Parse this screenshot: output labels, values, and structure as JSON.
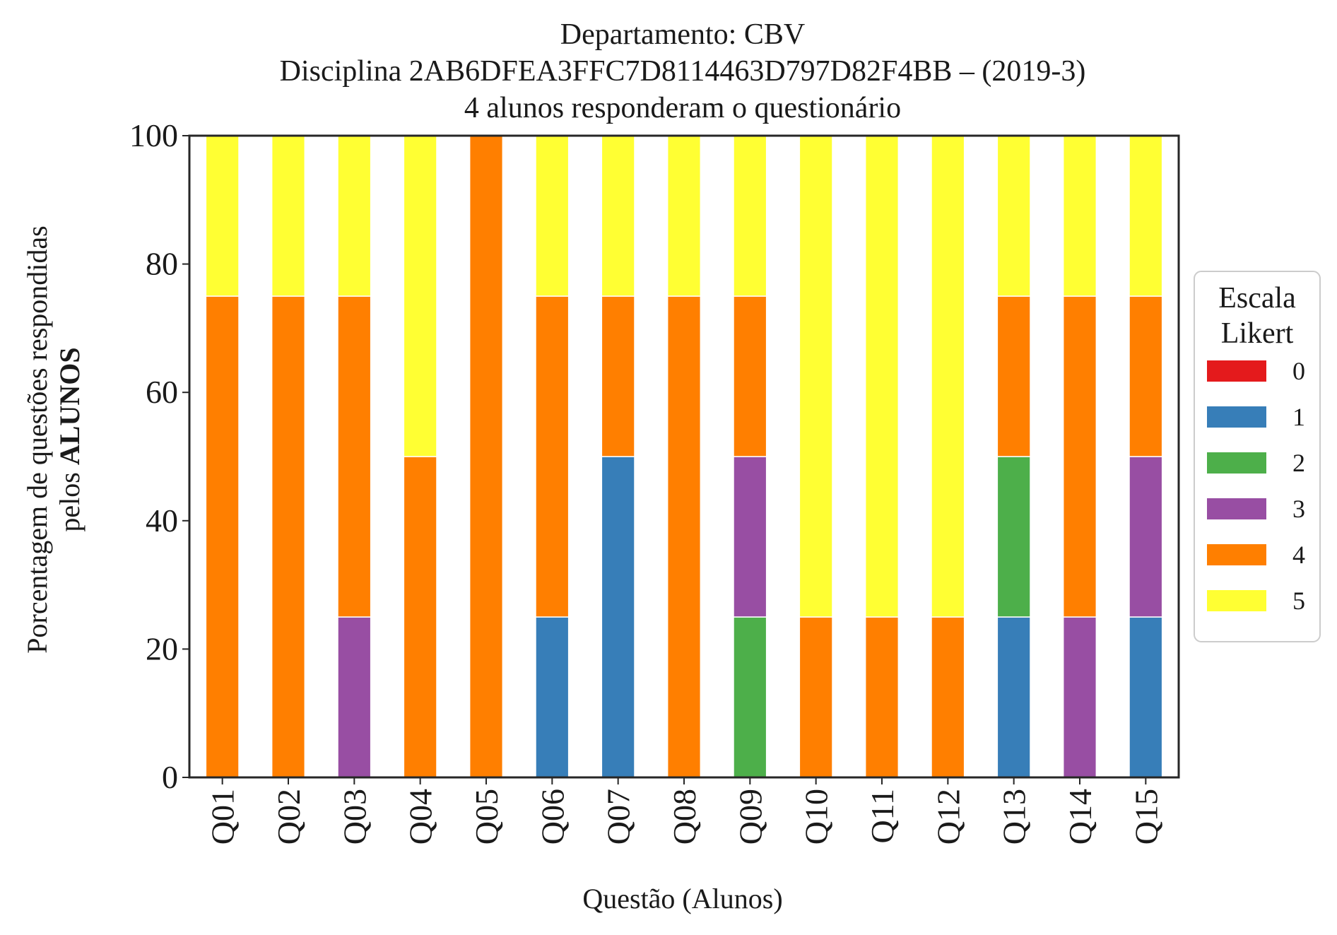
{
  "chart_data": {
    "type": "bar",
    "stacked": true,
    "title_lines": [
      "Departamento: CBV",
      "Disciplina 2AB6DFEA3FFC7D8114463D797D82F4BB – (2019-3)",
      "4 alunos responderam o questionário"
    ],
    "xlabel": "Questão (Alunos)",
    "ylabel_line1": "Porcentagem de questões respondidas",
    "ylabel_line2_prefix": "pelos ",
    "ylabel_line2_bold": "ALUNOS",
    "ylim": [
      0,
      100
    ],
    "yticks": [
      0,
      20,
      40,
      60,
      80,
      100
    ],
    "categories": [
      "Q01",
      "Q02",
      "Q03",
      "Q04",
      "Q05",
      "Q06",
      "Q07",
      "Q08",
      "Q09",
      "Q10",
      "Q11",
      "Q12",
      "Q13",
      "Q14",
      "Q15"
    ],
    "legend": {
      "title_lines": [
        "Escala",
        "Likert"
      ],
      "placement": "center-right, outside"
    },
    "grid": false,
    "series": [
      {
        "name": "0",
        "color": "#e41a1c",
        "values": [
          0,
          0,
          0,
          0,
          0,
          0,
          0,
          0,
          0,
          0,
          0,
          0,
          0,
          0,
          0
        ]
      },
      {
        "name": "1",
        "color": "#377eb8",
        "values": [
          0,
          0,
          0,
          0,
          0,
          25,
          50,
          0,
          0,
          0,
          0,
          0,
          25,
          0,
          25
        ]
      },
      {
        "name": "2",
        "color": "#4daf4a",
        "values": [
          0,
          0,
          0,
          0,
          0,
          0,
          0,
          0,
          25,
          0,
          0,
          0,
          25,
          0,
          0
        ]
      },
      {
        "name": "3",
        "color": "#984ea3",
        "values": [
          0,
          0,
          25,
          0,
          0,
          0,
          0,
          0,
          25,
          0,
          0,
          0,
          0,
          25,
          25
        ]
      },
      {
        "name": "4",
        "color": "#ff7f00",
        "values": [
          75,
          75,
          50,
          50,
          100,
          50,
          25,
          75,
          25,
          25,
          25,
          25,
          25,
          50,
          25
        ]
      },
      {
        "name": "5",
        "color": "#ffff33",
        "values": [
          25,
          25,
          25,
          50,
          0,
          25,
          25,
          25,
          25,
          75,
          75,
          75,
          25,
          25,
          25
        ]
      }
    ]
  }
}
